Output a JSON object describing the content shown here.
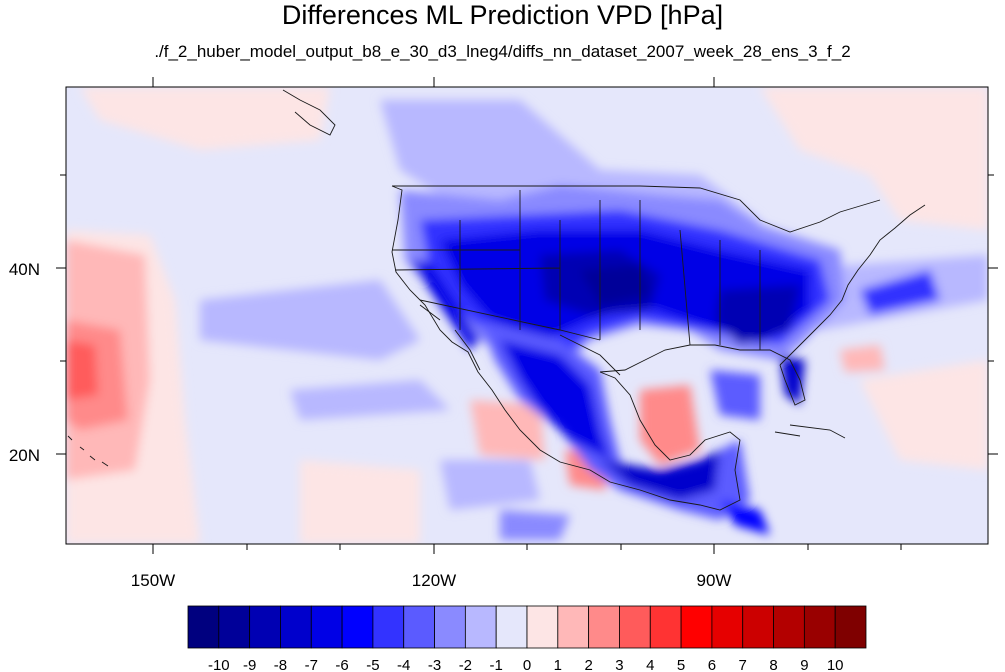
{
  "title": "Differences ML Prediction VPD [hPa]",
  "subtitle": "./f_2_huber_model_output_b8_e_30_d3_lneg4/diffs_nn_dataset_2007_week_28_ens_3_f_2",
  "map": {
    "lon_labels": [
      "150W",
      "120W",
      "90W"
    ],
    "lat_labels": [
      "40N",
      "20N"
    ]
  },
  "colorbar": {
    "labels": [
      "-10",
      "-9",
      "-8",
      "-7",
      "-6",
      "-5",
      "-4",
      "-3",
      "-2",
      "-1",
      "0",
      "1",
      "2",
      "3",
      "4",
      "5",
      "6",
      "7",
      "8",
      "9",
      "10"
    ],
    "colors": [
      "#00007f",
      "#000099",
      "#0000b3",
      "#0000cc",
      "#0000e6",
      "#0000ff",
      "#3333ff",
      "#5b5bff",
      "#8a8aff",
      "#b8b8ff",
      "#e5e7fb",
      "#fde5e5",
      "#ffb8b8",
      "#ff8a8a",
      "#ff5b5b",
      "#ff3333",
      "#ff0000",
      "#e60000",
      "#cc0000",
      "#b30000",
      "#990000",
      "#7f0000"
    ]
  }
}
